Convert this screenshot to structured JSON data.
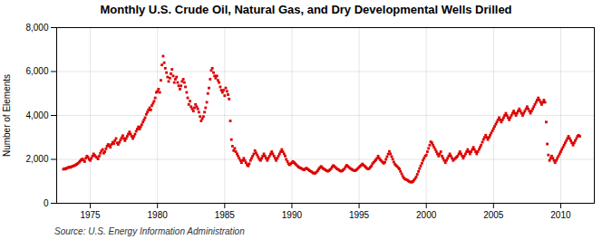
{
  "chart_data": {
    "type": "scatter",
    "title": "Monthly U.S. Crude Oil, Natural Gas, and Dry Developmental Wells Drilled",
    "ylabel": "Number of Elements",
    "source": "Source: U.S. Energy Information Administration",
    "color": "#DD0000",
    "marker": "square",
    "grid": true,
    "xlim": [
      1972.5,
      2012.5
    ],
    "xticks": [
      1975,
      1980,
      1985,
      1990,
      1995,
      2000,
      2005,
      2010
    ],
    "ylim": [
      0,
      8000
    ],
    "yticks": [
      {
        "value": 0,
        "label": "0"
      },
      {
        "value": 2000,
        "label": "2,000"
      },
      {
        "value": 4000,
        "label": "4,000"
      },
      {
        "value": 6000,
        "label": "6,000"
      },
      {
        "value": 8000,
        "label": "8,000"
      }
    ],
    "x": [
      1973,
      1973.08,
      1973.17,
      1973.25,
      1973.33,
      1973.42,
      1973.5,
      1973.58,
      1973.67,
      1973.75,
      1973.83,
      1973.92,
      1974,
      1974.08,
      1974.17,
      1974.25,
      1974.33,
      1974.42,
      1974.5,
      1974.58,
      1974.67,
      1974.75,
      1974.83,
      1974.92,
      1975,
      1975.08,
      1975.17,
      1975.25,
      1975.33,
      1975.42,
      1975.5,
      1975.58,
      1975.67,
      1975.75,
      1975.83,
      1975.92,
      1976,
      1976.08,
      1976.17,
      1976.25,
      1976.33,
      1976.42,
      1976.5,
      1976.58,
      1976.67,
      1976.75,
      1976.83,
      1976.92,
      1977,
      1977.08,
      1977.17,
      1977.25,
      1977.33,
      1977.42,
      1977.5,
      1977.58,
      1977.67,
      1977.75,
      1977.83,
      1977.92,
      1978,
      1978.08,
      1978.17,
      1978.25,
      1978.33,
      1978.42,
      1978.5,
      1978.58,
      1978.67,
      1978.75,
      1978.83,
      1978.92,
      1979,
      1979.08,
      1979.17,
      1979.25,
      1979.33,
      1979.42,
      1979.5,
      1979.58,
      1979.67,
      1979.75,
      1979.83,
      1979.92,
      1980,
      1980.08,
      1980.17,
      1980.25,
      1980.33,
      1980.42,
      1980.5,
      1980.58,
      1980.67,
      1980.75,
      1980.83,
      1980.92,
      1981,
      1981.08,
      1981.17,
      1981.25,
      1981.33,
      1981.42,
      1981.5,
      1981.58,
      1981.67,
      1981.75,
      1981.83,
      1981.92,
      1982,
      1982.08,
      1982.17,
      1982.25,
      1982.33,
      1982.42,
      1982.5,
      1982.58,
      1982.67,
      1982.75,
      1982.83,
      1982.92,
      1983,
      1983.08,
      1983.17,
      1983.25,
      1983.33,
      1983.42,
      1983.5,
      1983.58,
      1983.67,
      1983.75,
      1983.83,
      1983.92,
      1984,
      1984.08,
      1984.17,
      1984.25,
      1984.33,
      1984.42,
      1984.5,
      1984.58,
      1984.67,
      1984.75,
      1984.83,
      1984.92,
      1985,
      1985.08,
      1985.17,
      1985.25,
      1985.33,
      1985.42,
      1985.5,
      1985.58,
      1985.67,
      1985.75,
      1985.83,
      1985.92,
      1986,
      1986.08,
      1986.17,
      1986.25,
      1986.33,
      1986.42,
      1986.5,
      1986.58,
      1986.67,
      1986.75,
      1986.83,
      1986.92,
      1987,
      1987.08,
      1987.17,
      1987.25,
      1987.33,
      1987.42,
      1987.5,
      1987.58,
      1987.67,
      1987.75,
      1987.83,
      1987.92,
      1988,
      1988.08,
      1988.17,
      1988.25,
      1988.33,
      1988.42,
      1988.5,
      1988.58,
      1988.67,
      1988.75,
      1988.83,
      1988.92,
      1989,
      1989.08,
      1989.17,
      1989.25,
      1989.33,
      1989.42,
      1989.5,
      1989.58,
      1989.67,
      1989.75,
      1989.83,
      1989.92,
      1990,
      1990.08,
      1990.17,
      1990.25,
      1990.33,
      1990.42,
      1990.5,
      1990.58,
      1990.67,
      1990.75,
      1990.83,
      1990.92,
      1991,
      1991.08,
      1991.17,
      1991.25,
      1991.33,
      1991.42,
      1991.5,
      1991.58,
      1991.67,
      1991.75,
      1991.83,
      1991.92,
      1992,
      1992.08,
      1992.17,
      1992.25,
      1992.33,
      1992.42,
      1992.5,
      1992.58,
      1992.67,
      1992.75,
      1992.83,
      1992.92,
      1993,
      1993.08,
      1993.17,
      1993.25,
      1993.33,
      1993.42,
      1993.5,
      1993.58,
      1993.67,
      1993.75,
      1993.83,
      1993.92,
      1994,
      1994.08,
      1994.17,
      1994.25,
      1994.33,
      1994.42,
      1994.5,
      1994.58,
      1994.67,
      1994.75,
      1994.83,
      1994.92,
      1995,
      1995.08,
      1995.17,
      1995.25,
      1995.33,
      1995.42,
      1995.5,
      1995.58,
      1995.67,
      1995.75,
      1995.83,
      1995.92,
      1996,
      1996.08,
      1996.17,
      1996.25,
      1996.33,
      1996.42,
      1996.5,
      1996.58,
      1996.67,
      1996.75,
      1996.83,
      1996.92,
      1997,
      1997.08,
      1997.17,
      1997.25,
      1997.33,
      1997.42,
      1997.5,
      1997.58,
      1997.67,
      1997.75,
      1997.83,
      1997.92,
      1998,
      1998.08,
      1998.17,
      1998.25,
      1998.33,
      1998.42,
      1998.5,
      1998.58,
      1998.67,
      1998.75,
      1998.83,
      1998.92,
      1999,
      1999.08,
      1999.17,
      1999.25,
      1999.33,
      1999.42,
      1999.5,
      1999.58,
      1999.67,
      1999.75,
      1999.83,
      1999.92,
      2000,
      2000.08,
      2000.17,
      2000.25,
      2000.33,
      2000.42,
      2000.5,
      2000.58,
      2000.67,
      2000.75,
      2000.83,
      2000.92,
      2001,
      2001.08,
      2001.17,
      2001.25,
      2001.33,
      2001.42,
      2001.5,
      2001.58,
      2001.67,
      2001.75,
      2001.83,
      2001.92,
      2002,
      2002.08,
      2002.17,
      2002.25,
      2002.33,
      2002.42,
      2002.5,
      2002.58,
      2002.67,
      2002.75,
      2002.83,
      2002.92,
      2003,
      2003.08,
      2003.17,
      2003.25,
      2003.33,
      2003.42,
      2003.5,
      2003.58,
      2003.67,
      2003.75,
      2003.83,
      2003.92,
      2004,
      2004.08,
      2004.17,
      2004.25,
      2004.33,
      2004.42,
      2004.5,
      2004.58,
      2004.67,
      2004.75,
      2004.83,
      2004.92,
      2005,
      2005.08,
      2005.17,
      2005.25,
      2005.33,
      2005.42,
      2005.5,
      2005.58,
      2005.67,
      2005.75,
      2005.83,
      2005.92,
      2006,
      2006.08,
      2006.17,
      2006.25,
      2006.33,
      2006.42,
      2006.5,
      2006.58,
      2006.67,
      2006.75,
      2006.83,
      2006.92,
      2007,
      2007.08,
      2007.17,
      2007.25,
      2007.33,
      2007.42,
      2007.5,
      2007.58,
      2007.67,
      2007.75,
      2007.83,
      2007.92,
      2008,
      2008.08,
      2008.17,
      2008.25,
      2008.33,
      2008.42,
      2008.5,
      2008.58,
      2008.67,
      2008.75,
      2008.83,
      2008.92,
      2009,
      2009.08,
      2009.17,
      2009.25,
      2009.33,
      2009.42,
      2009.5,
      2009.58,
      2009.67,
      2009.75,
      2009.83,
      2009.92,
      2010,
      2010.08,
      2010.17,
      2010.25,
      2010.33,
      2010.42,
      2010.5,
      2010.58,
      2010.67,
      2010.75,
      2010.83,
      2010.92,
      2011,
      2011.08,
      2011.17,
      2011.25,
      2011.33,
      2011.42
    ],
    "values": [
      1550,
      1580,
      1560,
      1600,
      1620,
      1650,
      1630,
      1660,
      1680,
      1700,
      1720,
      1750,
      1780,
      1820,
      1870,
      1920,
      1980,
      2020,
      1960,
      1900,
      2050,
      2150,
      2100,
      2000,
      1950,
      2050,
      2150,
      2250,
      2180,
      2120,
      2080,
      2020,
      2150,
      2280,
      2380,
      2450,
      2280,
      2350,
      2480,
      2600,
      2680,
      2620,
      2550,
      2680,
      2780,
      2720,
      2850,
      2950,
      2750,
      2680,
      2780,
      2880,
      2980,
      3080,
      2950,
      2850,
      2950,
      3050,
      3150,
      3250,
      3150,
      3050,
      2950,
      3050,
      3150,
      3280,
      3380,
      3480,
      3380,
      3480,
      3580,
      3700,
      3800,
      3900,
      4050,
      4150,
      4250,
      4350,
      4250,
      4450,
      4550,
      4650,
      4800,
      5050,
      5100,
      5200,
      5050,
      5600,
      6300,
      6700,
      6400,
      6150,
      5950,
      5750,
      5550,
      5700,
      5900,
      6100,
      5800,
      5500,
      5650,
      5750,
      5500,
      5350,
      5200,
      5350,
      5550,
      5650,
      5500,
      5300,
      5050,
      4800,
      4500,
      4650,
      4400,
      4300,
      4200,
      4350,
      4500,
      4400,
      4300,
      4150,
      3950,
      3750,
      3850,
      3950,
      4150,
      4350,
      4600,
      5000,
      5250,
      5650,
      6050,
      6150,
      5950,
      5800,
      5700,
      5800,
      5600,
      5500,
      5300,
      5150,
      5050,
      5150,
      4900,
      5250,
      5100,
      4950,
      4750,
      3750,
      2900,
      2600,
      2400,
      2500,
      2350,
      2250,
      2150,
      2050,
      1950,
      1850,
      1950,
      2050,
      1950,
      1850,
      1750,
      1700,
      1800,
      1950,
      2050,
      2150,
      2250,
      2400,
      2300,
      2200,
      2100,
      2000,
      1950,
      2050,
      2150,
      2250,
      2150,
      2050,
      1950,
      2050,
      2150,
      2250,
      2350,
      2250,
      2150,
      2050,
      1950,
      2050,
      2150,
      2250,
      2350,
      2450,
      2350,
      2250,
      2150,
      2000,
      1900,
      1800,
      1750,
      1800,
      1850,
      1900,
      1850,
      1800,
      1750,
      1700,
      1650,
      1620,
      1600,
      1570,
      1540,
      1520,
      1570,
      1600,
      1560,
      1520,
      1480,
      1450,
      1420,
      1380,
      1360,
      1380,
      1420,
      1480,
      1560,
      1620,
      1680,
      1630,
      1580,
      1550,
      1520,
      1480,
      1460,
      1480,
      1530,
      1580,
      1660,
      1720,
      1680,
      1630,
      1580,
      1550,
      1520,
      1480,
      1460,
      1480,
      1530,
      1580,
      1670,
      1730,
      1680,
      1640,
      1590,
      1560,
      1530,
      1500,
      1480,
      1500,
      1540,
      1590,
      1640,
      1690,
      1740,
      1790,
      1740,
      1690,
      1640,
      1590,
      1560,
      1580,
      1640,
      1700,
      1800,
      1860,
      1920,
      1980,
      2050,
      2150,
      2050,
      1980,
      1920,
      1870,
      1820,
      1870,
      2000,
      2120,
      2240,
      2360,
      2250,
      2130,
      2010,
      1880,
      1780,
      1720,
      1680,
      1620,
      1560,
      1450,
      1340,
      1230,
      1150,
      1100,
      1080,
      1060,
      1020,
      980,
      970,
      960,
      990,
      1050,
      1120,
      1200,
      1320,
      1450,
      1580,
      1700,
      1820,
      1950,
      2050,
      2150,
      2200,
      2350,
      2500,
      2650,
      2800,
      2750,
      2650,
      2550,
      2450,
      2350,
      2250,
      2150,
      2250,
      2350,
      2150,
      2050,
      1950,
      1850,
      1950,
      2050,
      2150,
      2250,
      2150,
      2050,
      1950,
      2000,
      2050,
      2100,
      2150,
      2250,
      2350,
      2250,
      2150,
      2050,
      2150,
      2250,
      2350,
      2450,
      2350,
      2250,
      2350,
      2450,
      2550,
      2450,
      2350,
      2250,
      2350,
      2450,
      2550,
      2650,
      2780,
      2900,
      3000,
      3100,
      3000,
      2900,
      3000,
      3100,
      3200,
      3300,
      3400,
      3500,
      3600,
      3700,
      3800,
      3900,
      3800,
      3700,
      3800,
      3900,
      4000,
      4100,
      4000,
      3900,
      3800,
      3900,
      4000,
      4100,
      4200,
      4100,
      4000,
      4100,
      4200,
      4300,
      4200,
      4100,
      4000,
      4100,
      4200,
      4300,
      4400,
      4300,
      4200,
      4100,
      4200,
      4300,
      4400,
      4500,
      4600,
      4700,
      4800,
      4700,
      4600,
      4500,
      4600,
      4700,
      4600,
      3700,
      2700,
      2200,
      1950,
      2050,
      2150,
      2050,
      1950,
      1850,
      1950,
      2050,
      2150,
      2250,
      2350,
      2450,
      2550,
      2650,
      2750,
      2850,
      2950,
      3050,
      2950,
      2850,
      2750,
      2650,
      2750,
      2850,
      2950,
      3050,
      3100,
      3050
    ]
  }
}
